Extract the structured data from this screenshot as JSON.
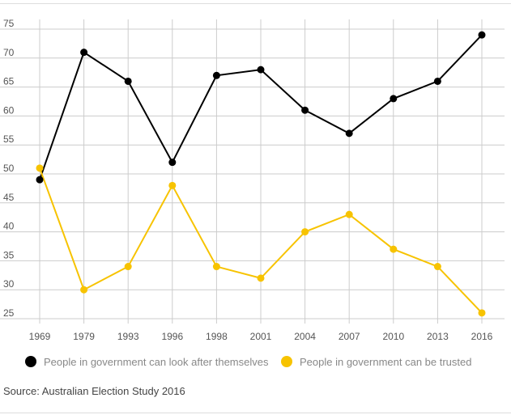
{
  "chart_data": {
    "type": "line",
    "categories": [
      "1969",
      "1979",
      "1993",
      "1996",
      "1998",
      "2001",
      "2004",
      "2007",
      "2010",
      "2013",
      "2016"
    ],
    "yticks": [
      25,
      30,
      35,
      40,
      45,
      50,
      55,
      60,
      65,
      70,
      75
    ],
    "ylim": [
      25,
      75
    ],
    "grid": true,
    "legend_position": "bottom",
    "series": [
      {
        "name": "People in government can look after themselves",
        "color": "#000000",
        "values": [
          49,
          71,
          66,
          52,
          67,
          68,
          61,
          57,
          63,
          66,
          74
        ]
      },
      {
        "name": "People in government can be trusted",
        "color": "#f7c300",
        "values": [
          51,
          30,
          34,
          48,
          34,
          32,
          40,
          43,
          37,
          34,
          26
        ]
      }
    ]
  },
  "source": "Source: Australian Election Study 2016"
}
